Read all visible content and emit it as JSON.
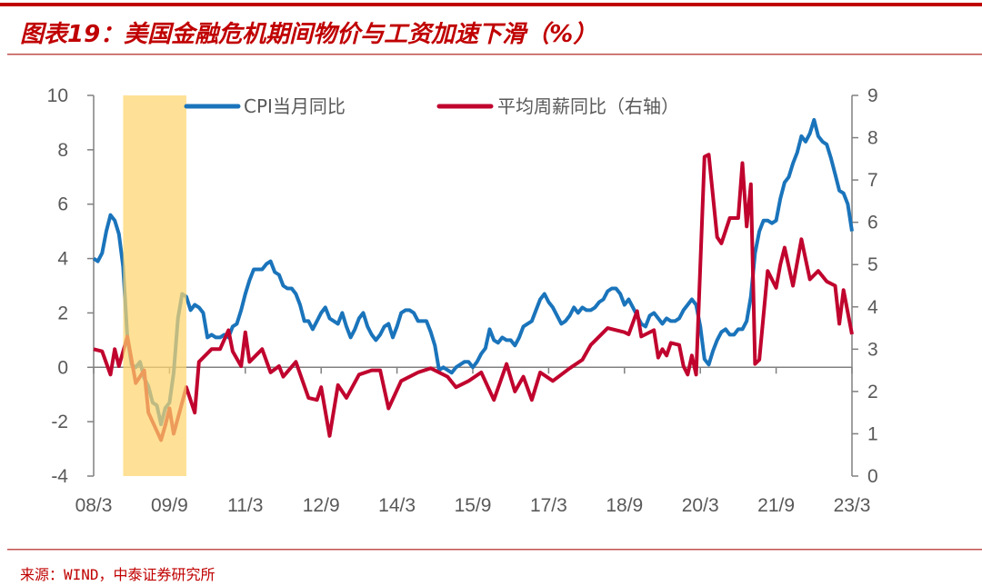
{
  "title": "图表19：美国金融危机期间物价与工资加速下滑（%）",
  "source": "来源：WIND，中泰证券研究所",
  "colors": {
    "cpi": "#1a74bb",
    "wage": "#c0042e",
    "shade": "#fdd56e",
    "brand": "#c00000",
    "axis": "#808080"
  },
  "chart_data": {
    "type": "line",
    "x_ticks": [
      "08/3",
      "09/9",
      "11/3",
      "12/9",
      "14/3",
      "15/9",
      "17/3",
      "18/9",
      "20/3",
      "21/9",
      "23/3"
    ],
    "x_range": [
      "2008-03",
      "2023-03"
    ],
    "y_left": {
      "range": [
        -4,
        10
      ],
      "ticks": [
        "-4",
        "-2",
        "0",
        "2",
        "4",
        "6",
        "8",
        "10"
      ]
    },
    "y_right": {
      "range": [
        0,
        9
      ],
      "ticks": [
        "0",
        "1",
        "2",
        "3",
        "4",
        "5",
        "6",
        "7",
        "8",
        "9"
      ]
    },
    "shaded_period": [
      "2008-10",
      "2010-01"
    ],
    "grid": false,
    "legend": "top",
    "series": [
      {
        "name": "CPI当月同比",
        "axis": "left",
        "start": "2008-03",
        "frequency": "monthly",
        "values": [
          4.0,
          3.9,
          4.2,
          5.0,
          5.6,
          5.4,
          4.9,
          3.7,
          1.1,
          0.1,
          0.0,
          0.2,
          -0.4,
          -0.7,
          -1.3,
          -1.4,
          -2.1,
          -1.5,
          -1.3,
          -0.2,
          1.8,
          2.7,
          2.6,
          2.1,
          2.3,
          2.2,
          2.0,
          1.1,
          1.2,
          1.1,
          1.1,
          1.2,
          1.1,
          1.5,
          1.6,
          2.1,
          2.7,
          3.2,
          3.6,
          3.6,
          3.6,
          3.8,
          3.9,
          3.5,
          3.4,
          3.0,
          2.9,
          2.9,
          2.7,
          2.3,
          1.7,
          1.7,
          1.4,
          1.7,
          2.0,
          2.2,
          1.8,
          1.7,
          1.6,
          2.0,
          1.5,
          1.1,
          1.4,
          1.8,
          2.0,
          1.5,
          1.2,
          1.0,
          1.2,
          1.5,
          1.6,
          1.1,
          1.5,
          2.0,
          2.1,
          2.1,
          2.0,
          1.7,
          1.7,
          1.7,
          1.3,
          0.8,
          -0.1,
          0.0,
          -0.1,
          -0.2,
          0.0,
          0.1,
          0.2,
          0.2,
          0.0,
          0.2,
          0.5,
          0.7,
          1.4,
          1.0,
          0.9,
          1.1,
          1.0,
          1.0,
          0.8,
          1.1,
          1.5,
          1.6,
          1.7,
          2.1,
          2.5,
          2.7,
          2.4,
          2.2,
          1.9,
          1.6,
          1.7,
          1.9,
          2.2,
          2.0,
          2.2,
          2.1,
          2.1,
          2.2,
          2.4,
          2.5,
          2.8,
          2.9,
          2.9,
          2.7,
          2.3,
          2.5,
          2.2,
          1.9,
          1.6,
          1.5,
          1.9,
          2.0,
          1.8,
          1.6,
          1.8,
          1.7,
          1.7,
          1.8,
          2.1,
          2.3,
          2.5,
          2.3,
          1.5,
          0.3,
          0.1,
          0.6,
          1.0,
          1.3,
          1.4,
          1.2,
          1.2,
          1.4,
          1.4,
          1.7,
          2.6,
          4.2,
          5.0,
          5.4,
          5.4,
          5.3,
          5.4,
          6.2,
          6.8,
          7.0,
          7.5,
          7.9,
          8.5,
          8.3,
          8.6,
          9.1,
          8.5,
          8.3,
          8.2,
          7.7,
          7.1,
          6.5,
          6.4,
          6.0,
          5.0
        ]
      },
      {
        "name": "平均周薪同比（右轴）",
        "axis": "right",
        "points": [
          [
            "2008-03",
            3.0
          ],
          [
            "2008-05",
            2.95
          ],
          [
            "2008-07",
            2.4
          ],
          [
            "2008-08",
            3.0
          ],
          [
            "2008-09",
            2.6
          ],
          [
            "2008-11",
            3.3
          ],
          [
            "2009-01",
            2.2
          ],
          [
            "2009-03",
            2.5
          ],
          [
            "2009-04",
            1.5
          ],
          [
            "2009-07",
            0.85
          ],
          [
            "2009-08",
            1.2
          ],
          [
            "2009-09",
            1.6
          ],
          [
            "2009-10",
            1.0
          ],
          [
            "2010-01",
            2.1
          ],
          [
            "2010-03",
            1.5
          ],
          [
            "2010-04",
            2.7
          ],
          [
            "2010-07",
            3.0
          ],
          [
            "2010-09",
            3.0
          ],
          [
            "2010-11",
            3.45
          ],
          [
            "2010-12",
            2.95
          ],
          [
            "2011-02",
            2.6
          ],
          [
            "2011-03",
            3.4
          ],
          [
            "2011-04",
            2.7
          ],
          [
            "2011-07",
            3.0
          ],
          [
            "2011-09",
            2.45
          ],
          [
            "2011-11",
            2.6
          ],
          [
            "2011-12",
            2.35
          ],
          [
            "2012-03",
            2.7
          ],
          [
            "2012-06",
            1.85
          ],
          [
            "2012-08",
            1.8
          ],
          [
            "2012-09",
            2.1
          ],
          [
            "2012-11",
            0.95
          ],
          [
            "2013-01",
            2.15
          ],
          [
            "2013-03",
            1.85
          ],
          [
            "2013-06",
            2.4
          ],
          [
            "2013-09",
            2.5
          ],
          [
            "2013-11",
            2.5
          ],
          [
            "2014-01",
            1.6
          ],
          [
            "2014-04",
            2.25
          ],
          [
            "2014-08",
            2.45
          ],
          [
            "2014-11",
            2.55
          ],
          [
            "2015-03",
            2.35
          ],
          [
            "2015-05",
            2.1
          ],
          [
            "2015-08",
            2.25
          ],
          [
            "2015-11",
            2.45
          ],
          [
            "2016-02",
            1.8
          ],
          [
            "2016-05",
            2.65
          ],
          [
            "2016-07",
            2.0
          ],
          [
            "2016-09",
            2.35
          ],
          [
            "2016-11",
            1.8
          ],
          [
            "2017-01",
            2.45
          ],
          [
            "2017-04",
            2.25
          ],
          [
            "2017-08",
            2.55
          ],
          [
            "2017-11",
            2.75
          ],
          [
            "2018-01",
            3.1
          ],
          [
            "2018-03",
            3.3
          ],
          [
            "2018-05",
            3.5
          ],
          [
            "2018-09",
            3.4
          ],
          [
            "2018-10",
            3.35
          ],
          [
            "2018-12",
            3.9
          ],
          [
            "2019-01",
            3.3
          ],
          [
            "2019-04",
            3.45
          ],
          [
            "2019-05",
            2.8
          ],
          [
            "2019-06",
            3.0
          ],
          [
            "2019-07",
            2.85
          ],
          [
            "2019-08",
            3.15
          ],
          [
            "2019-10",
            3.1
          ],
          [
            "2019-11",
            2.6
          ],
          [
            "2019-12",
            2.4
          ],
          [
            "2020-01",
            2.85
          ],
          [
            "2020-02",
            2.4
          ],
          [
            "2020-04",
            7.55
          ],
          [
            "2020-05",
            7.6
          ],
          [
            "2020-07",
            5.65
          ],
          [
            "2020-08",
            5.5
          ],
          [
            "2020-10",
            6.1
          ],
          [
            "2020-12",
            6.1
          ],
          [
            "2021-01",
            7.4
          ],
          [
            "2021-02",
            5.9
          ],
          [
            "2021-03",
            6.9
          ],
          [
            "2021-04",
            2.65
          ],
          [
            "2021-05",
            2.75
          ],
          [
            "2021-07",
            4.85
          ],
          [
            "2021-09",
            4.45
          ],
          [
            "2021-10",
            5.0
          ],
          [
            "2021-11",
            5.4
          ],
          [
            "2022-01",
            4.5
          ],
          [
            "2022-03",
            5.6
          ],
          [
            "2022-05",
            4.65
          ],
          [
            "2022-07",
            4.85
          ],
          [
            "2022-09",
            4.6
          ],
          [
            "2022-11",
            4.5
          ],
          [
            "2022-12",
            3.6
          ],
          [
            "2023-01",
            4.4
          ],
          [
            "2023-03",
            3.35
          ]
        ]
      }
    ]
  }
}
